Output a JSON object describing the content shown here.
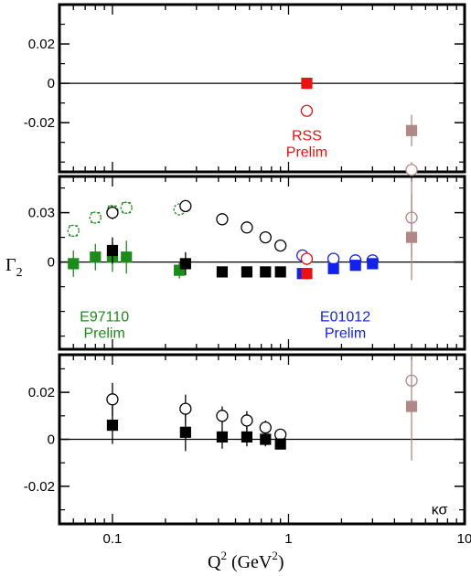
{
  "chart_data": {
    "type": "scatter",
    "ylabel": "Γ",
    "ylabel_sub": "2",
    "xlabel": "Q",
    "xlabel_sup": "2",
    "xlabel_unit_left": " (GeV",
    "xlabel_unit_sup": "2",
    "xlabel_unit_right": ")",
    "xscale": "log",
    "xlim": [
      0.05,
      10
    ],
    "x_ticks": [
      0.1,
      1,
      10
    ],
    "x_tick_labels": [
      "0.1",
      "1",
      "10"
    ],
    "colors": {
      "black": "#000000",
      "red": "#ee1111",
      "green": "#1a8c1a",
      "blue": "#1122ee",
      "brown": "#b08888"
    },
    "panels": [
      {
        "ylim": [
          -0.045,
          0.04
        ],
        "y_ticks": [
          -0.02,
          0,
          0.02
        ],
        "y_tick_labels": [
          "-0.02",
          "0",
          "0.02"
        ],
        "annotations": [
          {
            "lines": [
              "RSS",
              "Prelim"
            ],
            "color": "red",
            "at": [
              1.27,
              -0.029
            ]
          }
        ],
        "series": [
          {
            "marker": "square",
            "fill": true,
            "color": "red",
            "points": [
              {
                "x": 1.27,
                "y": 0.0,
                "err": 0.002
              }
            ]
          },
          {
            "marker": "circle",
            "fill": false,
            "color": "red",
            "points": [
              {
                "x": 1.27,
                "y": -0.014,
                "err": 0
              }
            ]
          },
          {
            "marker": "square",
            "fill": true,
            "color": "brown",
            "points": [
              {
                "x": 5.0,
                "y": -0.024,
                "err": 0.008
              }
            ]
          },
          {
            "marker": "circle",
            "fill": false,
            "color": "brown",
            "points": [
              {
                "x": 5.0,
                "y": -0.044,
                "err": 0.004
              }
            ]
          }
        ]
      },
      {
        "ylim": [
          -0.053,
          0.052
        ],
        "y_ticks": [
          0,
          0.03
        ],
        "y_tick_labels": [
          "0",
          "0.03"
        ],
        "annotations": [
          {
            "lines": [
              "E97110",
              "Prelim"
            ],
            "color": "green",
            "at": [
              0.09,
              -0.036
            ]
          },
          {
            "lines": [
              "E01012",
              "Prelim"
            ],
            "color": "blue",
            "at": [
              2.1,
              -0.036
            ]
          }
        ],
        "series": [
          {
            "marker": "circle",
            "fill": false,
            "dashed": true,
            "color": "green",
            "points": [
              {
                "x": 0.06,
                "y": 0.019,
                "err": 0.003
              },
              {
                "x": 0.08,
                "y": 0.027,
                "err": 0.003
              },
              {
                "x": 0.1,
                "y": 0.031,
                "err": 0.003
              },
              {
                "x": 0.12,
                "y": 0.033,
                "err": 0.003
              },
              {
                "x": 0.24,
                "y": 0.032,
                "err": 0.002
              }
            ]
          },
          {
            "marker": "square",
            "fill": true,
            "color": "green",
            "points": [
              {
                "x": 0.06,
                "y": -0.001,
                "err": 0.008
              },
              {
                "x": 0.08,
                "y": 0.003,
                "err": 0.008
              },
              {
                "x": 0.1,
                "y": 0.003,
                "err": 0.009
              },
              {
                "x": 0.12,
                "y": 0.003,
                "err": 0.01
              },
              {
                "x": 0.24,
                "y": -0.005,
                "err": 0.005
              }
            ]
          },
          {
            "marker": "circle",
            "fill": false,
            "color": "black",
            "points": [
              {
                "x": 0.1,
                "y": 0.03,
                "err": 0.004
              },
              {
                "x": 0.26,
                "y": 0.034,
                "err": 0.002
              },
              {
                "x": 0.42,
                "y": 0.026,
                "err": 0
              },
              {
                "x": 0.58,
                "y": 0.021,
                "err": 0
              },
              {
                "x": 0.74,
                "y": 0.015,
                "err": 0
              },
              {
                "x": 0.9,
                "y": 0.01,
                "err": 0
              }
            ]
          },
          {
            "marker": "square",
            "fill": true,
            "color": "black",
            "points": [
              {
                "x": 0.1,
                "y": 0.007,
                "err": 0.008
              },
              {
                "x": 0.26,
                "y": -0.001,
                "err": 0.007
              },
              {
                "x": 0.42,
                "y": -0.006,
                "err": 0.003
              },
              {
                "x": 0.58,
                "y": -0.006,
                "err": 0.003
              },
              {
                "x": 0.74,
                "y": -0.006,
                "err": 0.003
              },
              {
                "x": 0.9,
                "y": -0.006,
                "err": 0.003
              }
            ]
          },
          {
            "marker": "circle",
            "fill": false,
            "color": "blue",
            "points": [
              {
                "x": 1.2,
                "y": 0.004,
                "err": 0
              },
              {
                "x": 1.8,
                "y": 0.002,
                "err": 0
              },
              {
                "x": 2.4,
                "y": 0.001,
                "err": 0
              },
              {
                "x": 3.0,
                "y": 0.001,
                "err": 0
              }
            ]
          },
          {
            "marker": "square",
            "fill": true,
            "color": "blue",
            "points": [
              {
                "x": 1.2,
                "y": -0.007,
                "err": 0.002
              },
              {
                "x": 1.8,
                "y": -0.004,
                "err": 0.002
              },
              {
                "x": 2.4,
                "y": -0.002,
                "err": 0.002
              },
              {
                "x": 3.0,
                "y": -0.001,
                "err": 0.002
              }
            ]
          },
          {
            "marker": "circle",
            "fill": false,
            "color": "red",
            "points": [
              {
                "x": 1.27,
                "y": 0.002,
                "err": 0.004
              }
            ]
          },
          {
            "marker": "square",
            "fill": true,
            "color": "red",
            "points": [
              {
                "x": 1.27,
                "y": -0.007,
                "err": 0.003
              }
            ]
          },
          {
            "marker": "circle",
            "fill": false,
            "color": "brown",
            "points": [
              {
                "x": 5.0,
                "y": 0.027,
                "err": 0.024
              }
            ]
          },
          {
            "marker": "square",
            "fill": true,
            "color": "brown",
            "points": [
              {
                "x": 5.0,
                "y": 0.015,
                "err": 0.026
              }
            ]
          }
        ]
      },
      {
        "ylim": [
          -0.036,
          0.036
        ],
        "y_ticks": [
          -0.02,
          0,
          0.02
        ],
        "y_tick_labels": [
          "-0.02",
          "0",
          "0.02"
        ],
        "annotations": [
          {
            "lines": [
              "κσ"
            ],
            "color": "black",
            "at": [
              7.2,
              -0.032
            ]
          }
        ],
        "series": [
          {
            "marker": "circle",
            "fill": false,
            "color": "black",
            "points": [
              {
                "x": 0.1,
                "y": 0.017,
                "err": 0.007
              },
              {
                "x": 0.26,
                "y": 0.013,
                "err": 0.006
              },
              {
                "x": 0.42,
                "y": 0.01,
                "err": 0.004
              },
              {
                "x": 0.58,
                "y": 0.008,
                "err": 0.004
              },
              {
                "x": 0.74,
                "y": 0.005,
                "err": 0.003
              },
              {
                "x": 0.9,
                "y": 0.002,
                "err": 0.002
              }
            ]
          },
          {
            "marker": "square",
            "fill": true,
            "color": "black",
            "points": [
              {
                "x": 0.1,
                "y": 0.006,
                "err": 0.008
              },
              {
                "x": 0.26,
                "y": 0.003,
                "err": 0.008
              },
              {
                "x": 0.42,
                "y": 0.001,
                "err": 0.005
              },
              {
                "x": 0.58,
                "y": 0.001,
                "err": 0.004
              },
              {
                "x": 0.74,
                "y": 0.0,
                "err": 0.003
              },
              {
                "x": 0.9,
                "y": -0.002,
                "err": 0.002
              }
            ]
          },
          {
            "marker": "circle",
            "fill": false,
            "color": "brown",
            "points": [
              {
                "x": 5.0,
                "y": 0.025,
                "err": 0.002
              }
            ]
          },
          {
            "marker": "square",
            "fill": true,
            "color": "brown",
            "points": [
              {
                "x": 5.0,
                "y": 0.014,
                "err": 0.023
              }
            ]
          }
        ]
      }
    ]
  }
}
